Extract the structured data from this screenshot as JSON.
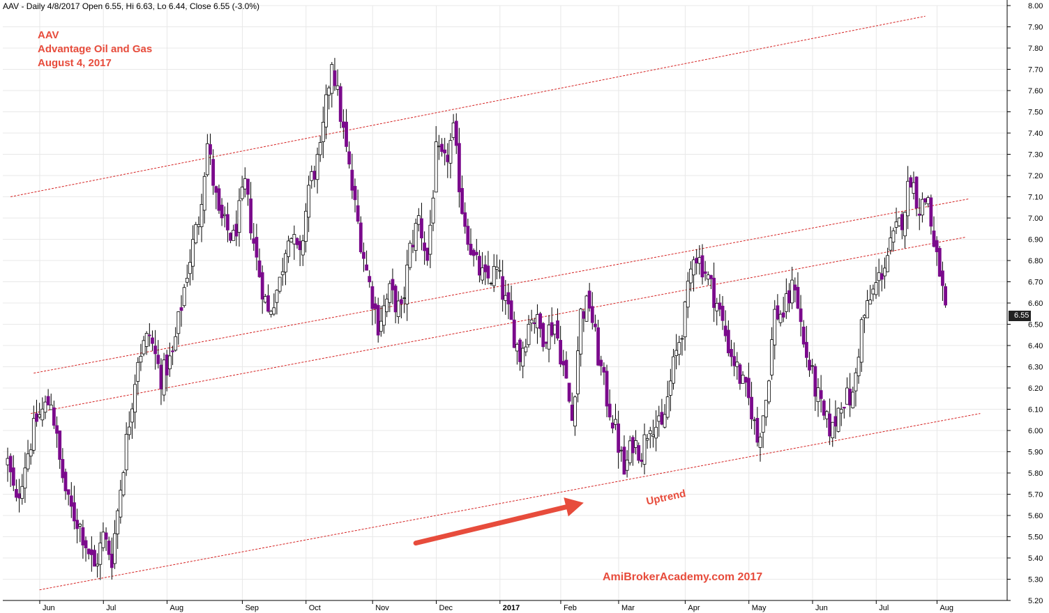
{
  "header": {
    "text": "AAV - Daily 4/8/2017 Open 6.55, Hi 6.63, Lo 6.44, Close 6.55 (-3.0%)"
  },
  "annotations": {
    "symbol": "AAV",
    "company": "Advantage Oil and Gas",
    "date": "August 4, 2017",
    "uptrend_label": "Uptrend",
    "watermark": "AmiBrokerAcademy.com  2017"
  },
  "last_price_label": "6.55",
  "colors": {
    "down_candle": "#7b0a8c",
    "up_candle": "#ffffff",
    "wick": "#000000",
    "channel_line": "#d42020",
    "annotation": "#e74c3c",
    "grid": "#e8e8e8"
  },
  "chart_data": {
    "type": "candlestick",
    "ylim": [
      5.2,
      8.0
    ],
    "y_ticks": [
      "5.20",
      "5.30",
      "5.40",
      "5.50",
      "5.60",
      "5.70",
      "5.80",
      "5.90",
      "6.00",
      "6.10",
      "6.20",
      "6.30",
      "6.40",
      "6.50",
      "6.60",
      "6.70",
      "6.80",
      "6.90",
      "7.00",
      "7.10",
      "7.20",
      "7.30",
      "7.40",
      "7.50",
      "7.60",
      "7.70",
      "7.80",
      "7.90",
      "8.00"
    ],
    "x_ticks": [
      {
        "label": "Jun",
        "bar": 13,
        "bold": false
      },
      {
        "label": "Jul",
        "bar": 35,
        "bold": false
      },
      {
        "label": "Aug",
        "bar": 57,
        "bold": false
      },
      {
        "label": "Sep",
        "bar": 83,
        "bold": false
      },
      {
        "label": "Oct",
        "bar": 105,
        "bold": false
      },
      {
        "label": "Nov",
        "bar": 128,
        "bold": false
      },
      {
        "label": "Dec",
        "bar": 150,
        "bold": false
      },
      {
        "label": "2017",
        "bar": 172,
        "bold": true
      },
      {
        "label": "Feb",
        "bar": 193,
        "bold": false
      },
      {
        "label": "Mar",
        "bar": 213,
        "bold": false
      },
      {
        "label": "Apr",
        "bar": 236,
        "bold": false
      },
      {
        "label": "May",
        "bar": 258,
        "bold": false
      },
      {
        "label": "Jun",
        "bar": 280,
        "bold": false
      },
      {
        "label": "Jul",
        "bar": 302,
        "bold": false
      },
      {
        "label": "Aug",
        "bar": 323,
        "bold": false
      }
    ],
    "keypoints": [
      {
        "bar": 0,
        "close": 5.85
      },
      {
        "bar": 3,
        "close": 5.65
      },
      {
        "bar": 6,
        "close": 5.85
      },
      {
        "bar": 10,
        "close": 6.05
      },
      {
        "bar": 15,
        "close": 6.15
      },
      {
        "bar": 18,
        "close": 5.85
      },
      {
        "bar": 21,
        "close": 5.65
      },
      {
        "bar": 25,
        "close": 5.55
      },
      {
        "bar": 30,
        "close": 5.35
      },
      {
        "bar": 33,
        "close": 5.5
      },
      {
        "bar": 36,
        "close": 5.4
      },
      {
        "bar": 40,
        "close": 5.85
      },
      {
        "bar": 45,
        "close": 6.35
      },
      {
        "bar": 49,
        "close": 6.45
      },
      {
        "bar": 53,
        "close": 6.25
      },
      {
        "bar": 57,
        "close": 6.35
      },
      {
        "bar": 62,
        "close": 6.75
      },
      {
        "bar": 66,
        "close": 7.0
      },
      {
        "bar": 69,
        "close": 7.35
      },
      {
        "bar": 73,
        "close": 7.0
      },
      {
        "bar": 78,
        "close": 6.9
      },
      {
        "bar": 82,
        "close": 7.15
      },
      {
        "bar": 86,
        "close": 6.8
      },
      {
        "bar": 90,
        "close": 6.55
      },
      {
        "bar": 94,
        "close": 6.7
      },
      {
        "bar": 97,
        "close": 6.95
      },
      {
        "bar": 101,
        "close": 6.8
      },
      {
        "bar": 104,
        "close": 7.15
      },
      {
        "bar": 108,
        "close": 7.3
      },
      {
        "bar": 112,
        "close": 7.75
      },
      {
        "bar": 116,
        "close": 7.4
      },
      {
        "bar": 120,
        "close": 7.05
      },
      {
        "bar": 124,
        "close": 6.75
      },
      {
        "bar": 128,
        "close": 6.5
      },
      {
        "bar": 132,
        "close": 6.65
      },
      {
        "bar": 136,
        "close": 6.55
      },
      {
        "bar": 139,
        "close": 6.85
      },
      {
        "bar": 142,
        "close": 7.0
      },
      {
        "bar": 145,
        "close": 6.8
      },
      {
        "bar": 148,
        "close": 7.3
      },
      {
        "bar": 151,
        "close": 7.25
      },
      {
        "bar": 154,
        "close": 7.4
      },
      {
        "bar": 157,
        "close": 7.05
      },
      {
        "bar": 161,
        "close": 6.8
      },
      {
        "bar": 165,
        "close": 6.7
      },
      {
        "bar": 169,
        "close": 6.75
      },
      {
        "bar": 173,
        "close": 6.55
      },
      {
        "bar": 177,
        "close": 6.35
      },
      {
        "bar": 181,
        "close": 6.55
      },
      {
        "bar": 185,
        "close": 6.45
      },
      {
        "bar": 189,
        "close": 6.5
      },
      {
        "bar": 192,
        "close": 6.3
      },
      {
        "bar": 195,
        "close": 6.05
      },
      {
        "bar": 198,
        "close": 6.55
      },
      {
        "bar": 201,
        "close": 6.6
      },
      {
        "bar": 204,
        "close": 6.35
      },
      {
        "bar": 207,
        "close": 6.15
      },
      {
        "bar": 210,
        "close": 6.0
      },
      {
        "bar": 213,
        "close": 5.8
      },
      {
        "bar": 216,
        "close": 5.95
      },
      {
        "bar": 219,
        "close": 5.9
      },
      {
        "bar": 222,
        "close": 6.05
      },
      {
        "bar": 226,
        "close": 6.0
      },
      {
        "bar": 230,
        "close": 6.3
      },
      {
        "bar": 234,
        "close": 6.55
      },
      {
        "bar": 237,
        "close": 6.85
      },
      {
        "bar": 241,
        "close": 6.75
      },
      {
        "bar": 245,
        "close": 6.6
      },
      {
        "bar": 249,
        "close": 6.4
      },
      {
        "bar": 253,
        "close": 6.25
      },
      {
        "bar": 257,
        "close": 6.1
      },
      {
        "bar": 259,
        "close": 5.95
      },
      {
        "bar": 262,
        "close": 6.15
      },
      {
        "bar": 265,
        "close": 6.55
      },
      {
        "bar": 268,
        "close": 6.55
      },
      {
        "bar": 272,
        "close": 6.7
      },
      {
        "bar": 275,
        "close": 6.4
      },
      {
        "bar": 279,
        "close": 6.2
      },
      {
        "bar": 282,
        "close": 6.05
      },
      {
        "bar": 285,
        "close": 6.0
      },
      {
        "bar": 288,
        "close": 6.15
      },
      {
        "bar": 292,
        "close": 6.15
      },
      {
        "bar": 295,
        "close": 6.5
      },
      {
        "bar": 299,
        "close": 6.65
      },
      {
        "bar": 302,
        "close": 6.75
      },
      {
        "bar": 306,
        "close": 6.9
      },
      {
        "bar": 309,
        "close": 7.0
      },
      {
        "bar": 312,
        "close": 7.2
      },
      {
        "bar": 315,
        "close": 7.05
      },
      {
        "bar": 318,
        "close": 7.1
      },
      {
        "bar": 320,
        "close": 6.85
      },
      {
        "bar": 322,
        "close": 6.75
      },
      {
        "bar": 324,
        "close": 6.55
      }
    ],
    "total_bars": 325,
    "channel_lines": [
      {
        "from": {
          "bar": 1,
          "y": 7.1
        },
        "to": {
          "bar": 317,
          "y": 7.95
        }
      },
      {
        "from": {
          "bar": 9,
          "y": 6.27
        },
        "to": {
          "bar": 332,
          "y": 7.09
        }
      },
      {
        "from": {
          "bar": 8,
          "y": 6.08
        },
        "to": {
          "bar": 331,
          "y": 6.91
        }
      },
      {
        "from": {
          "bar": 11,
          "y": 5.25
        },
        "to": {
          "bar": 336,
          "y": 6.08
        }
      }
    ],
    "arrow": {
      "from": {
        "bar": 141,
        "y": 5.47
      },
      "to": {
        "bar": 199,
        "y": 5.66
      }
    }
  }
}
